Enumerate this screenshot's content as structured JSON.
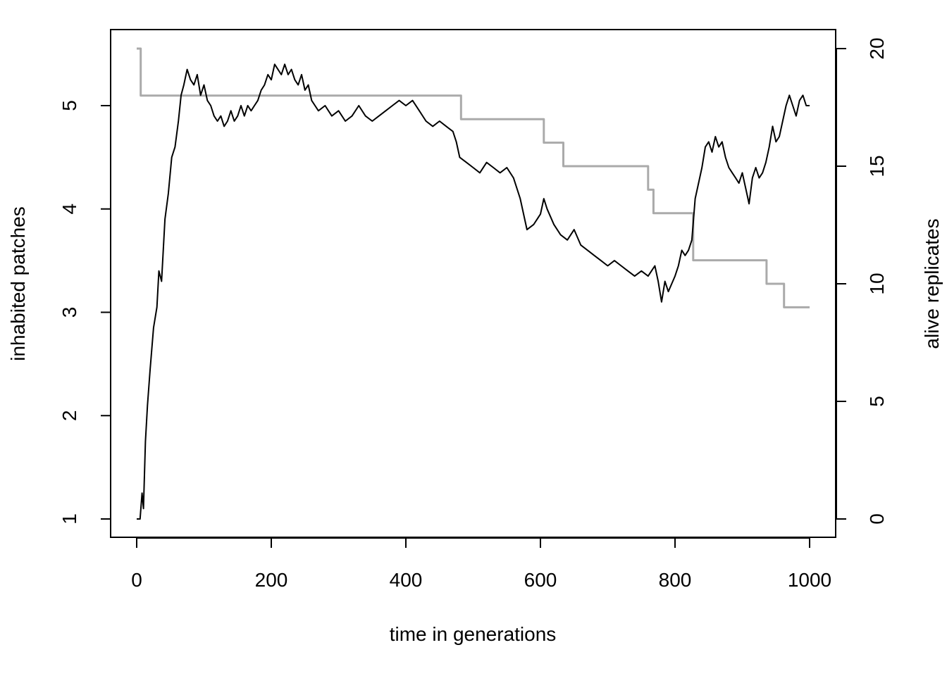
{
  "chart_data": {
    "type": "line",
    "title": "",
    "xlabel": "time in generations",
    "ylabel": "inhabited patches",
    "y2label": "alive replicates",
    "xlim": [
      0,
      1000
    ],
    "ylim": [
      1,
      5.6
    ],
    "y2lim": [
      0,
      20.3
    ],
    "xticks": [
      "0",
      "200",
      "400",
      "600",
      "800",
      "1000"
    ],
    "yticks": [
      "1",
      "2",
      "3",
      "4",
      "5"
    ],
    "y2ticks": [
      "0",
      "5",
      "10",
      "15",
      "20"
    ],
    "grid": false,
    "legend": "none",
    "series": [
      {
        "axis": "left",
        "color": "#000000",
        "points": [
          [
            0,
            1.0
          ],
          [
            5,
            1.0
          ],
          [
            8,
            1.25
          ],
          [
            10,
            1.1
          ],
          [
            13,
            1.75
          ],
          [
            16,
            2.1
          ],
          [
            20,
            2.45
          ],
          [
            25,
            2.85
          ],
          [
            30,
            3.05
          ],
          [
            33,
            3.4
          ],
          [
            37,
            3.3
          ],
          [
            42,
            3.9
          ],
          [
            47,
            4.15
          ],
          [
            52,
            4.5
          ],
          [
            57,
            4.6
          ],
          [
            62,
            4.85
          ],
          [
            66,
            5.1
          ],
          [
            70,
            5.2
          ],
          [
            75,
            5.35
          ],
          [
            80,
            5.25
          ],
          [
            85,
            5.2
          ],
          [
            90,
            5.3
          ],
          [
            95,
            5.1
          ],
          [
            100,
            5.2
          ],
          [
            105,
            5.05
          ],
          [
            110,
            5.0
          ],
          [
            115,
            4.9
          ],
          [
            120,
            4.85
          ],
          [
            125,
            4.9
          ],
          [
            130,
            4.8
          ],
          [
            135,
            4.85
          ],
          [
            140,
            4.95
          ],
          [
            145,
            4.85
          ],
          [
            150,
            4.9
          ],
          [
            155,
            5.0
          ],
          [
            160,
            4.9
          ],
          [
            165,
            5.0
          ],
          [
            170,
            4.95
          ],
          [
            175,
            5.0
          ],
          [
            180,
            5.05
          ],
          [
            185,
            5.15
          ],
          [
            190,
            5.2
          ],
          [
            195,
            5.3
          ],
          [
            200,
            5.25
          ],
          [
            205,
            5.4
          ],
          [
            210,
            5.35
          ],
          [
            215,
            5.3
          ],
          [
            220,
            5.4
          ],
          [
            225,
            5.3
          ],
          [
            230,
            5.35
          ],
          [
            235,
            5.25
          ],
          [
            240,
            5.2
          ],
          [
            245,
            5.3
          ],
          [
            250,
            5.15
          ],
          [
            255,
            5.2
          ],
          [
            260,
            5.05
          ],
          [
            265,
            5.0
          ],
          [
            270,
            4.95
          ],
          [
            280,
            5.0
          ],
          [
            290,
            4.9
          ],
          [
            300,
            4.95
          ],
          [
            310,
            4.85
          ],
          [
            320,
            4.9
          ],
          [
            330,
            5.0
          ],
          [
            340,
            4.9
          ],
          [
            350,
            4.85
          ],
          [
            360,
            4.9
          ],
          [
            370,
            4.95
          ],
          [
            380,
            5.0
          ],
          [
            390,
            5.05
          ],
          [
            400,
            5.0
          ],
          [
            410,
            5.05
          ],
          [
            420,
            4.95
          ],
          [
            430,
            4.85
          ],
          [
            440,
            4.8
          ],
          [
            450,
            4.85
          ],
          [
            460,
            4.8
          ],
          [
            470,
            4.75
          ],
          [
            475,
            4.65
          ],
          [
            480,
            4.5
          ],
          [
            490,
            4.45
          ],
          [
            500,
            4.4
          ],
          [
            510,
            4.35
          ],
          [
            520,
            4.45
          ],
          [
            530,
            4.4
          ],
          [
            540,
            4.35
          ],
          [
            550,
            4.4
          ],
          [
            560,
            4.3
          ],
          [
            570,
            4.1
          ],
          [
            580,
            3.8
          ],
          [
            590,
            3.85
          ],
          [
            600,
            3.95
          ],
          [
            605,
            4.1
          ],
          [
            610,
            4.0
          ],
          [
            620,
            3.85
          ],
          [
            630,
            3.75
          ],
          [
            640,
            3.7
          ],
          [
            650,
            3.8
          ],
          [
            660,
            3.65
          ],
          [
            670,
            3.6
          ],
          [
            680,
            3.55
          ],
          [
            690,
            3.5
          ],
          [
            700,
            3.45
          ],
          [
            710,
            3.5
          ],
          [
            720,
            3.45
          ],
          [
            730,
            3.4
          ],
          [
            740,
            3.35
          ],
          [
            750,
            3.4
          ],
          [
            760,
            3.35
          ],
          [
            770,
            3.45
          ],
          [
            775,
            3.3
          ],
          [
            780,
            3.1
          ],
          [
            785,
            3.3
          ],
          [
            790,
            3.2
          ],
          [
            800,
            3.35
          ],
          [
            805,
            3.45
          ],
          [
            810,
            3.6
          ],
          [
            815,
            3.55
          ],
          [
            820,
            3.6
          ],
          [
            825,
            3.7
          ],
          [
            830,
            4.1
          ],
          [
            835,
            4.25
          ],
          [
            840,
            4.4
          ],
          [
            845,
            4.6
          ],
          [
            850,
            4.65
          ],
          [
            855,
            4.55
          ],
          [
            860,
            4.7
          ],
          [
            865,
            4.6
          ],
          [
            870,
            4.65
          ],
          [
            875,
            4.5
          ],
          [
            880,
            4.4
          ],
          [
            885,
            4.35
          ],
          [
            890,
            4.3
          ],
          [
            895,
            4.25
          ],
          [
            900,
            4.35
          ],
          [
            905,
            4.2
          ],
          [
            910,
            4.05
          ],
          [
            915,
            4.3
          ],
          [
            920,
            4.4
          ],
          [
            925,
            4.3
          ],
          [
            930,
            4.35
          ],
          [
            935,
            4.45
          ],
          [
            940,
            4.6
          ],
          [
            945,
            4.8
          ],
          [
            950,
            4.65
          ],
          [
            955,
            4.7
          ],
          [
            960,
            4.85
          ],
          [
            965,
            5.0
          ],
          [
            970,
            5.1
          ],
          [
            975,
            5.0
          ],
          [
            980,
            4.9
          ],
          [
            985,
            5.05
          ],
          [
            990,
            5.1
          ],
          [
            995,
            5.0
          ],
          [
            1000,
            5.0
          ]
        ]
      },
      {
        "axis": "right",
        "color": "#aaaaaa",
        "points": [
          [
            0,
            20
          ],
          [
            6,
            20
          ],
          [
            6,
            18
          ],
          [
            482,
            18
          ],
          [
            482,
            17
          ],
          [
            605,
            17
          ],
          [
            605,
            16
          ],
          [
            634,
            16
          ],
          [
            634,
            15
          ],
          [
            760,
            15
          ],
          [
            760,
            14
          ],
          [
            768,
            14
          ],
          [
            768,
            13
          ],
          [
            827,
            13
          ],
          [
            827,
            11
          ],
          [
            936,
            11
          ],
          [
            936,
            10
          ],
          [
            962,
            10
          ],
          [
            962,
            9
          ],
          [
            1000,
            9
          ]
        ]
      }
    ]
  }
}
